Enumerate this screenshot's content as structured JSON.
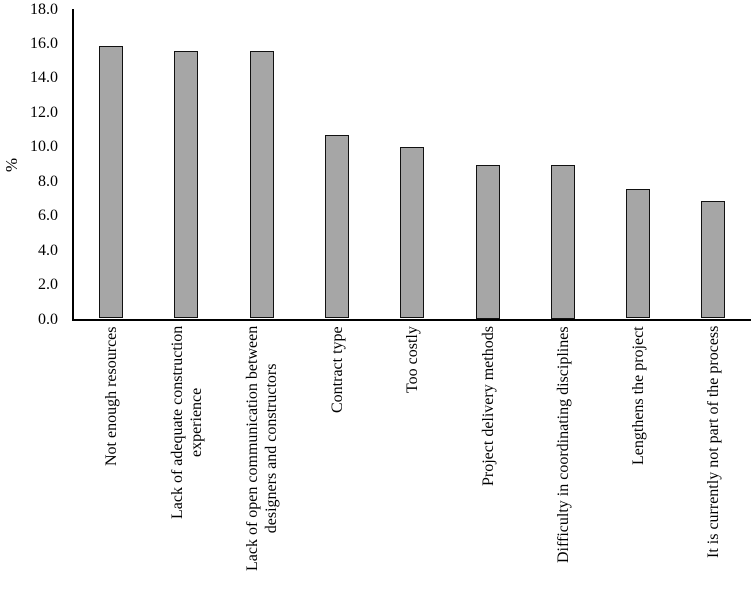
{
  "chart_data": {
    "type": "bar",
    "title": "",
    "xlabel": "",
    "ylabel": "%",
    "ylim": [
      0,
      18
    ],
    "yticks": [
      "0.0",
      "2.0",
      "4.0",
      "6.0",
      "8.0",
      "10.0",
      "12.0",
      "14.0",
      "16.0",
      "18.0"
    ],
    "grid": false,
    "legend": null,
    "bar_color": "#a6a6a6",
    "categories": [
      "Not enough resources",
      "Lack of adequate construction experience",
      "Lack of open communication between designers and constructors",
      "Contract type",
      "Too costly",
      "Project delivery methods",
      "Difficulty in coordinating disciplines",
      "Lengthens the project",
      "It is currently not part of the process"
    ],
    "category_lines": [
      [
        "Not enough resources"
      ],
      [
        "Lack of adequate construction",
        "experience"
      ],
      [
        "Lack of open communication between",
        "designers and constructors"
      ],
      [
        "Contract type"
      ],
      [
        "Too costly"
      ],
      [
        "Project delivery methods"
      ],
      [
        "Difficulty in coordinating disciplines"
      ],
      [
        "Lengthens the project"
      ],
      [
        "It is currently not part of the process"
      ]
    ],
    "values": [
      15.9,
      15.6,
      15.6,
      10.7,
      10.0,
      9.0,
      9.0,
      7.6,
      6.9
    ]
  }
}
